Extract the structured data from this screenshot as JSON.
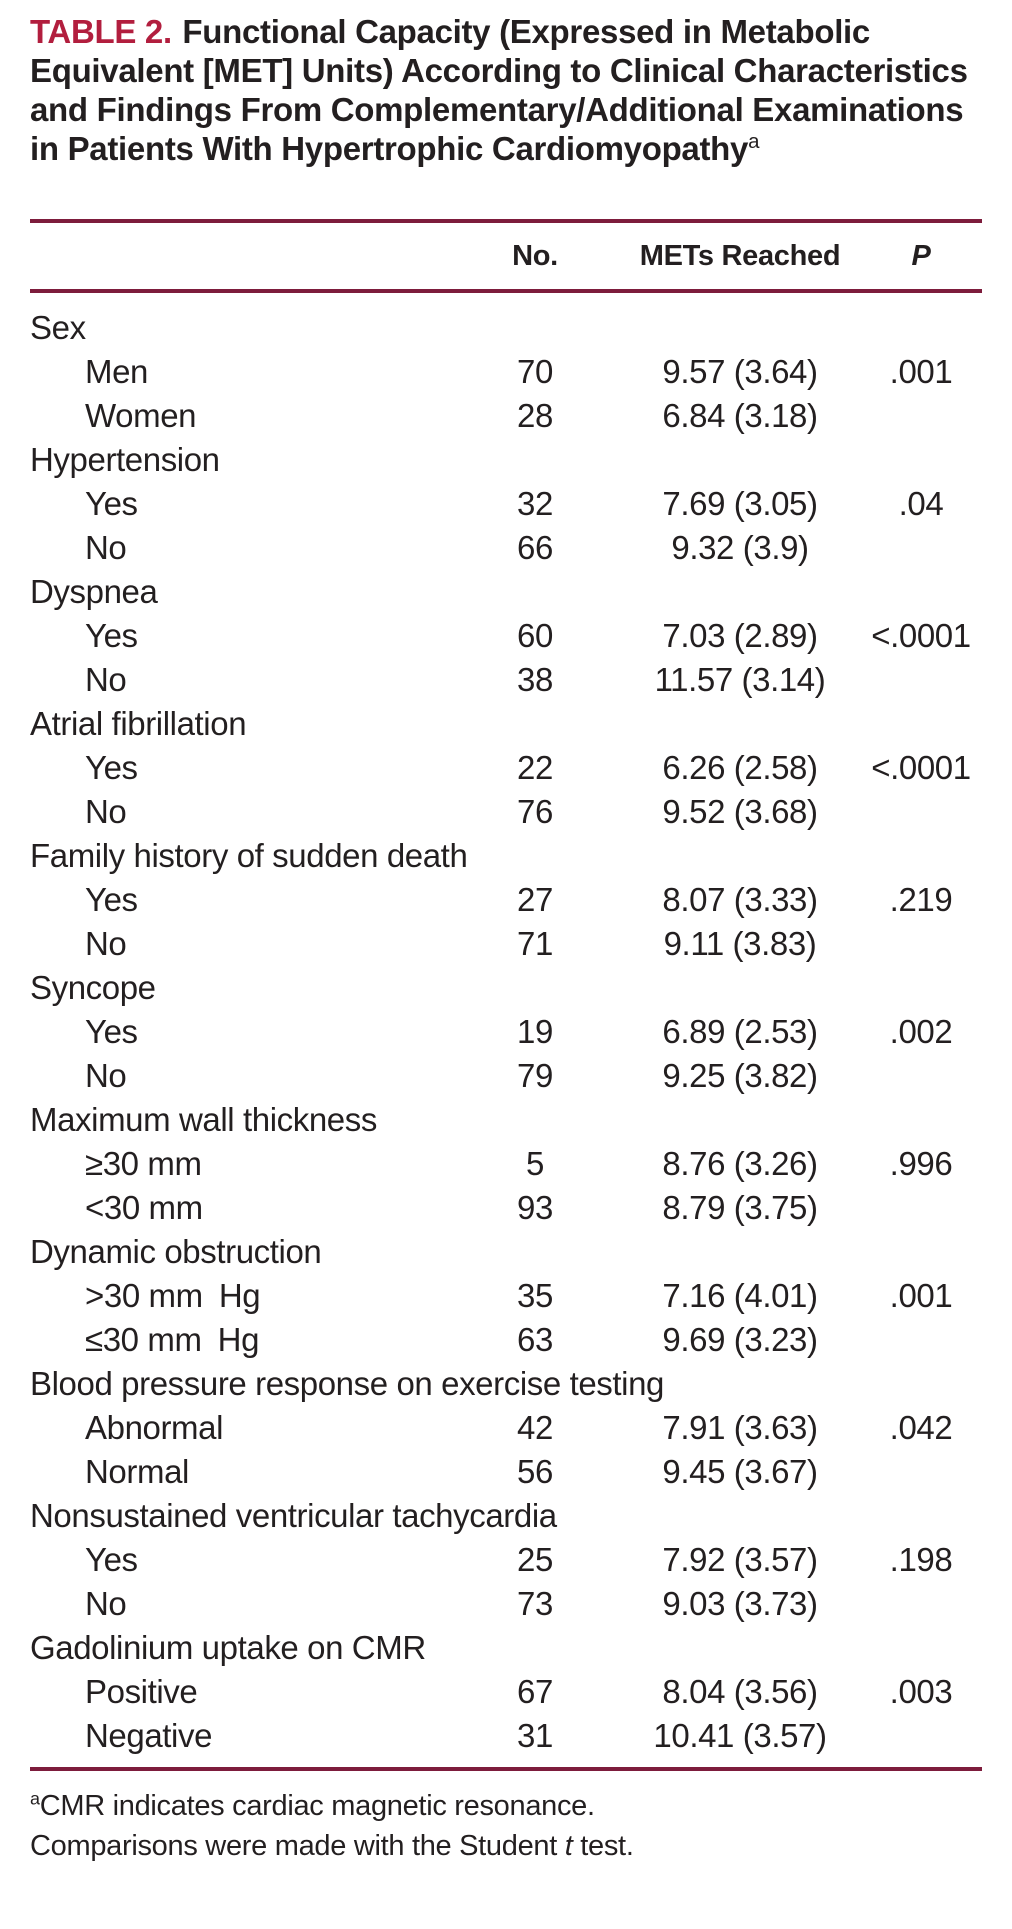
{
  "title": {
    "label": "TABLE 2.",
    "text": "Functional Capacity (Expressed in Metabolic Equivalent [MET] Units) According to Clinical Characteristics and Findings From Complementary/Additional Examinations in Patients With Hypertrophic Cardiomyopathy",
    "marker": "a"
  },
  "colors": {
    "accent_table_label": "#b21e3e",
    "rule": "#7d1c3c",
    "text": "#231f20",
    "background": "#ffffff"
  },
  "table": {
    "headers": {
      "no": "No.",
      "mets": "METs Reached",
      "p": "P"
    },
    "groups": [
      {
        "label": "Sex",
        "rows": [
          {
            "label": "Men",
            "no": "70",
            "mets": "9.57 (3.64)",
            "p": ".001"
          },
          {
            "label": "Women",
            "no": "28",
            "mets": "6.84 (3.18)",
            "p": ""
          }
        ]
      },
      {
        "label": "Hypertension",
        "rows": [
          {
            "label": "Yes",
            "no": "32",
            "mets": "7.69 (3.05)",
            "p": ".04"
          },
          {
            "label": "No",
            "no": "66",
            "mets": "9.32 (3.9)",
            "p": ""
          }
        ]
      },
      {
        "label": "Dyspnea",
        "rows": [
          {
            "label": "Yes",
            "no": "60",
            "mets": "7.03 (2.89)",
            "p": "<.0001"
          },
          {
            "label": "No",
            "no": "38",
            "mets": "11.57 (3.14)",
            "p": ""
          }
        ]
      },
      {
        "label": "Atrial fibrillation",
        "rows": [
          {
            "label": "Yes",
            "no": "22",
            "mets": "6.26 (2.58)",
            "p": "<.0001"
          },
          {
            "label": "No",
            "no": "76",
            "mets": "9.52 (3.68)",
            "p": ""
          }
        ]
      },
      {
        "label": "Family history of sudden death",
        "rows": [
          {
            "label": "Yes",
            "no": "27",
            "mets": "8.07 (3.33)",
            "p": ".219"
          },
          {
            "label": "No",
            "no": "71",
            "mets": "9.11 (3.83)",
            "p": ""
          }
        ]
      },
      {
        "label": "Syncope",
        "rows": [
          {
            "label": "Yes",
            "no": "19",
            "mets": "6.89 (2.53)",
            "p": ".002"
          },
          {
            "label": "No",
            "no": "79",
            "mets": "9.25 (3.82)",
            "p": ""
          }
        ]
      },
      {
        "label": "Maximum wall thickness",
        "rows": [
          {
            "label": "≥30 mm",
            "no": "5",
            "mets": "8.76 (3.26)",
            "p": ".996"
          },
          {
            "label": "<30 mm",
            "no": "93",
            "mets": "8.79 (3.75)",
            "p": ""
          }
        ]
      },
      {
        "label": "Dynamic obstruction",
        "rows": [
          {
            "label": ">30 mm Hg",
            "no": "35",
            "mets": "7.16 (4.01)",
            "p": ".001"
          },
          {
            "label": "≤30 mm Hg",
            "no": "63",
            "mets": "9.69 (3.23)",
            "p": ""
          }
        ]
      },
      {
        "label": "Blood pressure response on exercise testing",
        "rows": [
          {
            "label": "Abnormal",
            "no": "42",
            "mets": "7.91 (3.63)",
            "p": ".042"
          },
          {
            "label": "Normal",
            "no": "56",
            "mets": "9.45 (3.67)",
            "p": ""
          }
        ]
      },
      {
        "label": "Nonsustained ventricular tachycardia",
        "rows": [
          {
            "label": "Yes",
            "no": "25",
            "mets": "7.92 (3.57)",
            "p": ".198"
          },
          {
            "label": "No",
            "no": "73",
            "mets": "9.03 (3.73)",
            "p": ""
          }
        ]
      },
      {
        "label": "Gadolinium uptake on CMR",
        "rows": [
          {
            "label": "Positive",
            "no": "67",
            "mets": "8.04 (3.56)",
            "p": ".003"
          },
          {
            "label": "Negative",
            "no": "31",
            "mets": "10.41 (3.57)",
            "p": ""
          }
        ]
      }
    ]
  },
  "footnotes": {
    "cmr": {
      "marker": "a",
      "text": "CMR indicates cardiac magnetic resonance."
    },
    "comparisons": {
      "pre": "Comparisons were made with the Student ",
      "italic": "t",
      "post": " test."
    }
  }
}
